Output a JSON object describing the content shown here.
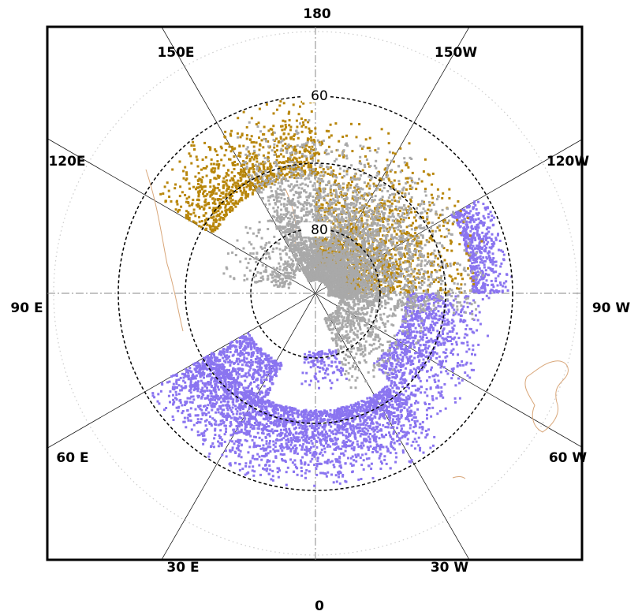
{
  "projection": "north-polar-stereographic",
  "colors": {
    "background": "#ffffff",
    "frame": "#000000",
    "meridian_line": "#000000",
    "axis_dashdot": "#8a8a8a",
    "ring_dashed": "#000000",
    "outer_dotted": "#cccccc",
    "coastline": "#d9a77a",
    "series_purple": "#8a74f0",
    "series_gold": "#b8860b",
    "series_gray": "#a9a9a9"
  },
  "longitude_labels": [
    {
      "id": "lon-180",
      "text": "180",
      "lon": 180
    },
    {
      "id": "lon-150e",
      "text": "150E",
      "lon": 150
    },
    {
      "id": "lon-150w",
      "text": "150W",
      "lon": -150
    },
    {
      "id": "lon-120e",
      "text": "120E",
      "lon": 120
    },
    {
      "id": "lon-120w",
      "text": "120W",
      "lon": -120
    },
    {
      "id": "lon-90e",
      "text": "90 E",
      "lon": 90
    },
    {
      "id": "lon-90w",
      "text": "90 W",
      "lon": -90
    },
    {
      "id": "lon-60e",
      "text": "60 E",
      "lon": 60
    },
    {
      "id": "lon-60w",
      "text": "60 W",
      "lon": -60
    },
    {
      "id": "lon-30e",
      "text": "30 E",
      "lon": 30
    },
    {
      "id": "lon-30w",
      "text": "30 W",
      "lon": -30
    },
    {
      "id": "lon-0",
      "text": "0",
      "lon": 0
    }
  ],
  "latitude_rings": [
    {
      "id": "lat-60",
      "text": "60",
      "lat": 60
    },
    {
      "id": "lat-80",
      "text": "80",
      "lat": 80
    },
    {
      "id": "lat-70",
      "text": "",
      "lat": 70
    }
  ],
  "data_regions": {
    "purple": "Atlantic sector: 0 to 60E (lat 60–80) and 60W–120W arc",
    "gold": "Pacific sector: 120E–180 and 120W–90W (lat 60–85)",
    "gray": "Arctic / Pacific sector: 150E–90W (lat 65–90)"
  }
}
